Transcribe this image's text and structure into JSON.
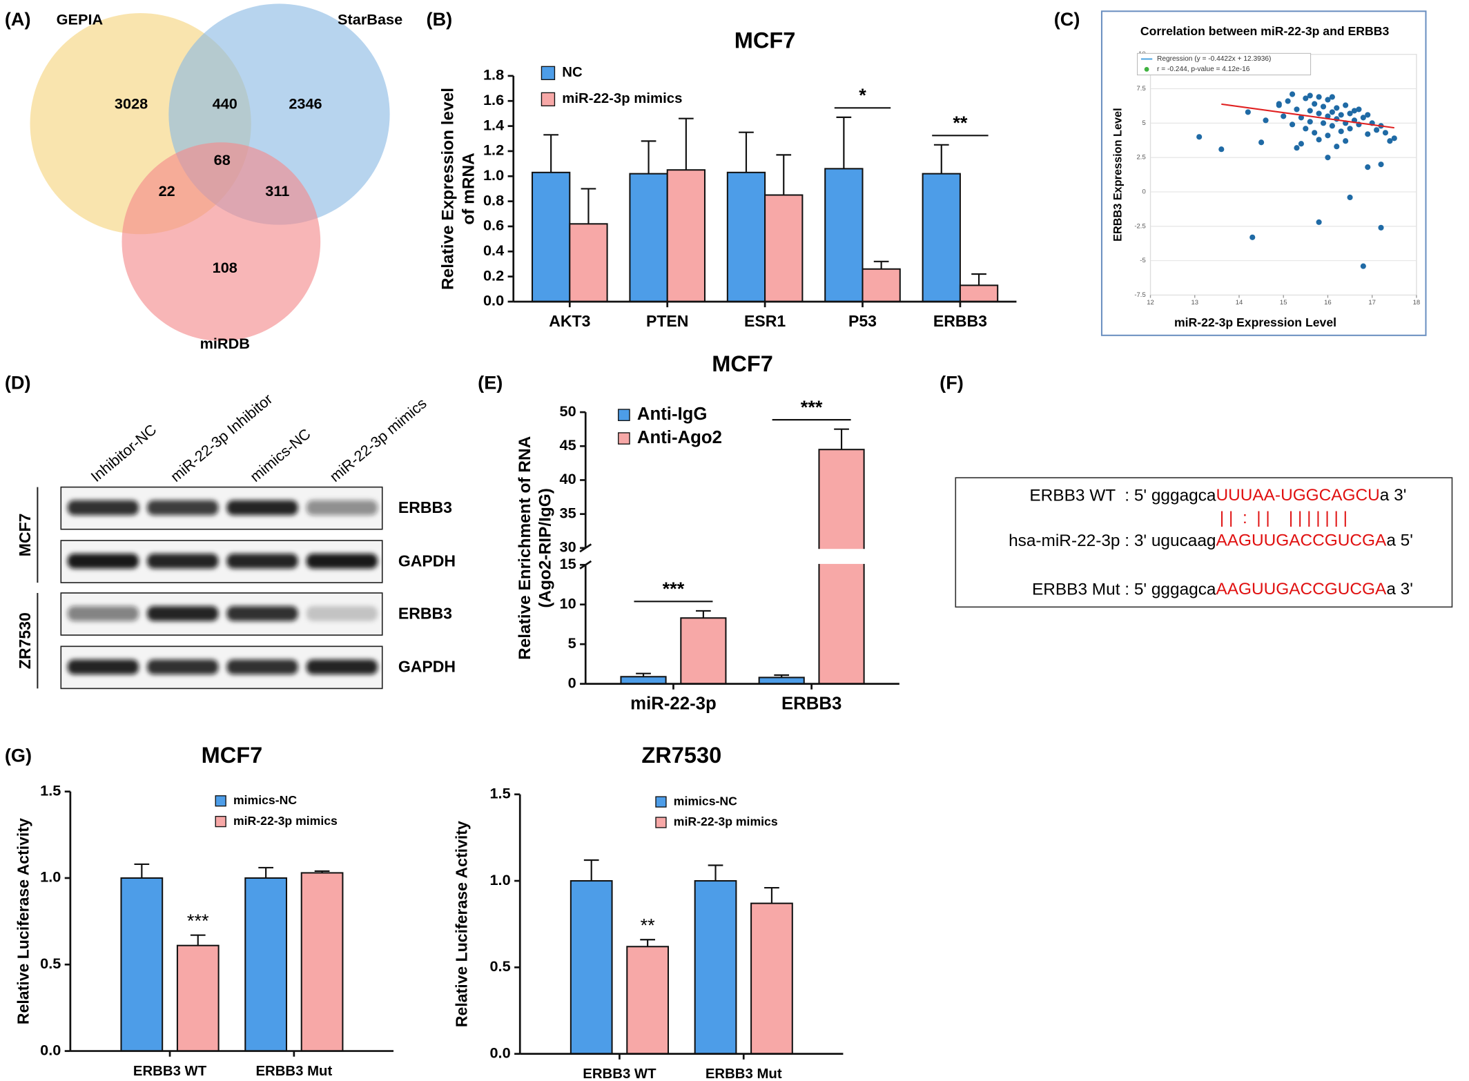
{
  "panel_labels": [
    "(A)",
    "(B)",
    "(C)",
    "(D)",
    "(E)",
    "(F)",
    "(G)"
  ],
  "venn": {
    "sets": [
      {
        "name": "GEPIA",
        "color": "#f6d47c"
      },
      {
        "name": "StarBase",
        "color": "#8ab9e3"
      },
      {
        "name": "miRDB",
        "color": "#f3898b"
      }
    ],
    "counts": [
      3028,
      440,
      2346,
      22,
      68,
      311,
      108
    ]
  },
  "western_blot": {
    "columns": [
      "Inhibitor-NC",
      "miR-22-3p Inhibitor",
      "mimics-NC",
      "miR-22-3p mimics"
    ],
    "rows": [
      {
        "cell_line": "MCF7",
        "proteins": [
          "ERBB3",
          "GAPDH"
        ]
      },
      {
        "cell_line": "ZR7530",
        "proteins": [
          "ERBB3",
          "GAPDH"
        ]
      }
    ]
  },
  "sequence": {
    "lines": [
      [
        "ERBB3 WT  : 5' gggagca",
        "UUUAA-UGGCAGCU",
        "a 3'"
      ],
      [
        "hsa-miR-22-3p : 3' ugucaag",
        "AAGUUGACCGUCGA",
        "a 5'"
      ],
      [
        "ERBB3 Mut : 5' gggagca",
        "AAGUUGACCGUCGA",
        "a 3'"
      ]
    ],
    "pairing": "| |  :  | |    | | | | | | |"
  },
  "chart_data": [
    {
      "type": "bar",
      "title": "MCF7",
      "categories": [
        "AKT3",
        "PTEN",
        "ESR1",
        "P53",
        "ERBB3"
      ],
      "series": [
        {
          "name": "NC",
          "color": "#4d9de8",
          "values": [
            1.03,
            1.02,
            1.03,
            1.06,
            1.02
          ],
          "errors": [
            0.3,
            0.26,
            0.32,
            0.41,
            0.23
          ]
        },
        {
          "name": "miR-22-3p mimics",
          "color": "#f7a8a7",
          "values": [
            0.62,
            1.05,
            0.85,
            0.26,
            0.13
          ],
          "errors": [
            0.28,
            0.41,
            0.32,
            0.06,
            0.09
          ]
        }
      ],
      "ylabel": [
        "Relative Expression level",
        "of mRNA"
      ],
      "ylim": [
        0,
        1.8
      ],
      "yticks": [
        {
          "value": 0,
          "label": "0.0"
        },
        0.2,
        0.4,
        0.6,
        0.8,
        {
          "value": 1,
          "label": "1.0"
        },
        1.2,
        1.4,
        1.6,
        1.8
      ],
      "significance": [
        null,
        null,
        null,
        "*",
        "**"
      ]
    },
    {
      "type": "scatter",
      "title": "Correlation between miR-22-3p and ERBB3",
      "legend": [
        "Regression (y = -0.4422x + 12.3936)",
        "r = -0.244, p-value = 4.12e-16"
      ],
      "xlabel": "miR-22-3p Expression Level",
      "ylabel": "ERBB3 Expression Level",
      "color": "#1f6aa5",
      "line_color": "#e02020",
      "xlim": [
        12,
        18
      ],
      "xticks": [
        12,
        13,
        14,
        15,
        16,
        17,
        18
      ],
      "ylim": [
        -7.5,
        10
      ],
      "yticks": [
        -7.5,
        -5,
        -2.5,
        0,
        2.5,
        5,
        7.5,
        10
      ],
      "grid": true,
      "regression_line": {
        "x": [
          13.6,
          17.5
        ],
        "y": [
          6.38,
          4.66
        ]
      },
      "x": [
        14.2,
        14.6,
        14.9,
        15.0,
        15.1,
        15.2,
        15.3,
        15.4,
        15.5,
        15.5,
        15.6,
        15.6,
        15.7,
        15.7,
        15.8,
        15.8,
        15.9,
        15.9,
        16.0,
        16.0,
        16.0,
        16.1,
        16.1,
        16.2,
        16.2,
        16.3,
        16.3,
        16.4,
        16.4,
        16.5,
        16.5,
        16.6,
        16.6,
        16.7,
        16.8,
        16.9,
        17.0,
        17.1,
        17.2,
        17.3,
        17.5,
        15.2,
        15.4,
        15.8,
        16.1,
        16.4,
        16.7,
        15.6,
        16.2,
        16.9,
        13.1,
        13.6,
        14.3,
        15.8,
        16.5,
        16.8,
        17.2,
        16.9,
        17.2,
        15.3,
        14.5,
        16.0,
        14.9,
        17.4
      ],
      "y": [
        5.8,
        5.2,
        6.3,
        5.5,
        6.6,
        4.9,
        6.0,
        5.4,
        6.8,
        4.6,
        5.9,
        5.1,
        6.4,
        4.3,
        5.7,
        6.9,
        5.0,
        6.2,
        5.5,
        4.1,
        6.7,
        5.8,
        4.8,
        6.1,
        5.3,
        5.6,
        4.4,
        6.3,
        5.0,
        5.7,
        4.6,
        5.9,
        5.2,
        4.9,
        5.4,
        4.2,
        5.0,
        4.5,
        4.8,
        4.3,
        3.9,
        7.1,
        3.5,
        3.8,
        6.9,
        3.7,
        6.0,
        7.0,
        3.3,
        5.6,
        4.0,
        3.1,
        -3.3,
        -2.2,
        -0.4,
        -5.4,
        -2.6,
        1.8,
        2.0,
        3.2,
        3.6,
        2.5,
        6.4,
        3.7
      ]
    },
    {
      "type": "bar",
      "title": "MCF7",
      "categories": [
        "miR-22-3p",
        "ERBB3"
      ],
      "series": [
        {
          "name": "Anti-IgG",
          "color": "#4d9de8",
          "values": [
            0.9,
            0.8
          ],
          "errors": [
            0.4,
            0.3
          ]
        },
        {
          "name": "Anti-Ago2",
          "color": "#f7a8a7",
          "values": [
            8.3,
            44.5
          ],
          "errors": [
            0.9,
            3.0
          ]
        }
      ],
      "ylabel": [
        "Relative Enrichment of RNA",
        "(Ago2-RIP/IgG)"
      ],
      "ylim": [
        0,
        50
      ],
      "axis_break": [
        15,
        30
      ],
      "yticks": [
        0,
        5,
        10,
        15,
        30,
        35,
        40,
        45,
        50
      ],
      "significance": [
        "***",
        "***"
      ]
    },
    {
      "type": "bar",
      "title": "MCF7",
      "categories": [
        "ERBB3 WT",
        "ERBB3 Mut"
      ],
      "series": [
        {
          "name": "mimics-NC",
          "color": "#4d9de8",
          "values": [
            1.0,
            1.0
          ],
          "errors": [
            0.08,
            0.06
          ]
        },
        {
          "name": "miR-22-3p mimics",
          "color": "#f7a8a7",
          "values": [
            0.61,
            1.03
          ],
          "errors": [
            0.06,
            0.01
          ]
        }
      ],
      "ylabel": [
        "Relative Luciferase Activity"
      ],
      "ylim": [
        0,
        1.5
      ],
      "yticks": [
        {
          "value": 0,
          "label": "0.0"
        },
        0.5,
        {
          "value": 1,
          "label": "1.0"
        },
        1.5
      ],
      "significance": [
        "***",
        null
      ]
    },
    {
      "type": "bar",
      "title": "ZR7530",
      "categories": [
        "ERBB3 WT",
        "ERBB3 Mut"
      ],
      "series": [
        {
          "name": "mimics-NC",
          "color": "#4d9de8",
          "values": [
            1.0,
            1.0
          ],
          "errors": [
            0.12,
            0.09
          ]
        },
        {
          "name": "miR-22-3p mimics",
          "color": "#f7a8a7",
          "values": [
            0.62,
            0.87
          ],
          "errors": [
            0.04,
            0.09
          ]
        }
      ],
      "ylabel": [
        "Relative Luciferase Activity"
      ],
      "ylim": [
        0,
        1.5
      ],
      "yticks": [
        {
          "value": 0,
          "label": "0.0"
        },
        0.5,
        {
          "value": 1,
          "label": "1.0"
        },
        1.5
      ],
      "significance": [
        "**",
        null
      ]
    }
  ]
}
